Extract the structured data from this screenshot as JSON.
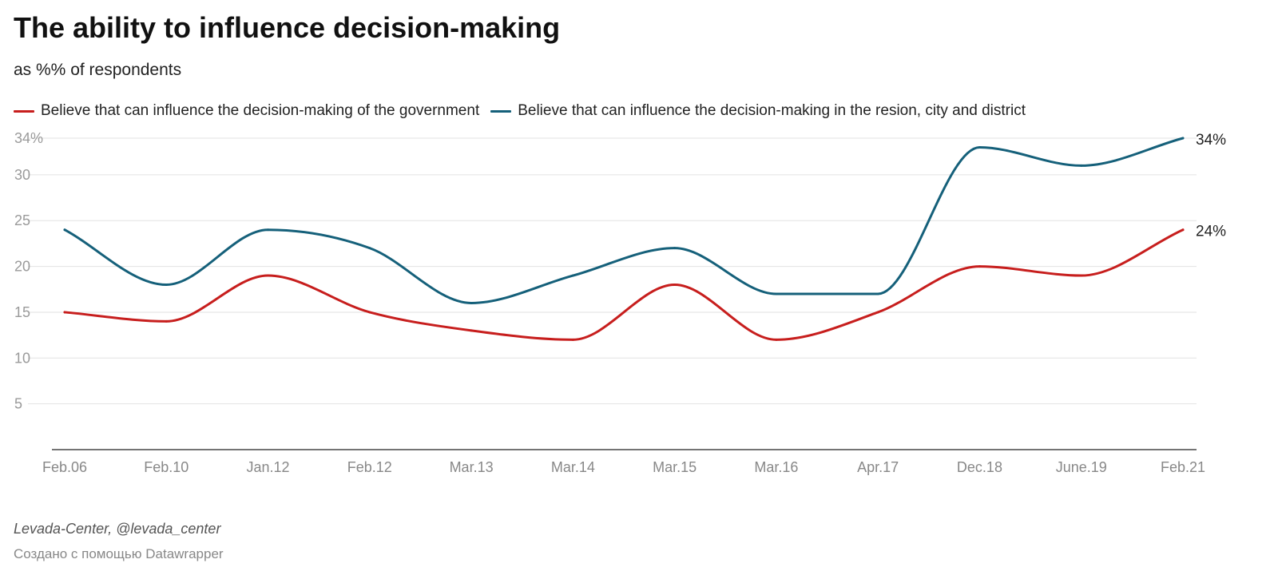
{
  "header": {
    "title": "The ability to influence decision-making",
    "subtitle": "as %% of respondents"
  },
  "footer": {
    "source": "Levada-Center, @levada_center",
    "credit": "Создано с помощью Datawrapper"
  },
  "chart_data": {
    "type": "line",
    "title": "The ability to influence decision-making",
    "subtitle": "as %% of respondents",
    "x": [
      "Feb.06",
      "Feb.10",
      "Jan.12",
      "Feb.12",
      "Mar.13",
      "Mar.14",
      "Mar.15",
      "Mar.16",
      "Apr.17",
      "Dec.18",
      "June.19",
      "Feb.21"
    ],
    "y_ticks": [
      "5",
      "10",
      "15",
      "20",
      "25",
      "30",
      "34%"
    ],
    "y_tick_values": [
      5,
      10,
      15,
      20,
      25,
      30,
      34
    ],
    "ylim": [
      0,
      34
    ],
    "grid": true,
    "legend_position": "top-left",
    "series": [
      {
        "name": "Believe that can influence the decision-making of the government",
        "color": "#c71e1d",
        "values": [
          15,
          14,
          19,
          15,
          13,
          12,
          18,
          12,
          15,
          20,
          19,
          24
        ],
        "end_label": "24%"
      },
      {
        "name": "Believe that can influence the decision-making in the resion, city and district",
        "color": "#15607a",
        "values": [
          24,
          18,
          24,
          22,
          16,
          19,
          22,
          17,
          17,
          33,
          31,
          34
        ],
        "end_label": "34%"
      }
    ]
  }
}
